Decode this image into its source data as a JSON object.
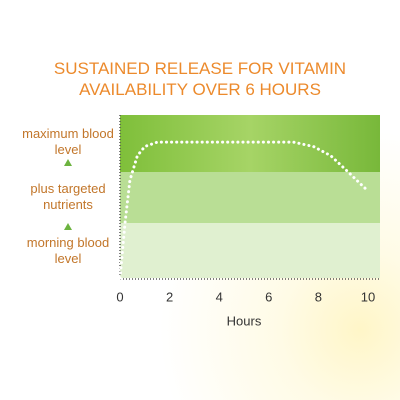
{
  "chart_data": {
    "type": "line",
    "title": "SUSTAINED RELEASE FOR VITAMIN AVAILABILITY OVER 6 HOURS",
    "x_label": "Hours",
    "x": [
      0,
      0.2,
      0.4,
      0.7,
      1,
      1.5,
      3,
      5,
      7,
      7.8,
      8.5,
      9.2,
      10
    ],
    "series": [
      {
        "color": "#ffffff",
        "values": [
          0,
          1.0,
          1.8,
          2.25,
          2.42,
          2.5,
          2.5,
          2.5,
          2.5,
          2.42,
          2.25,
          1.95,
          1.6
        ]
      }
    ],
    "xlim": [
      0,
      10
    ],
    "xticks": [
      0,
      2,
      4,
      6,
      8,
      10
    ],
    "ylim": [
      0,
      3
    ],
    "yticks": [
      {
        "value": 0.5,
        "label": "morning blood level"
      },
      {
        "value": 1.5,
        "label": "plus targeted nutrients"
      },
      {
        "value": 2.5,
        "label": "maximum blood level"
      }
    ]
  }
}
